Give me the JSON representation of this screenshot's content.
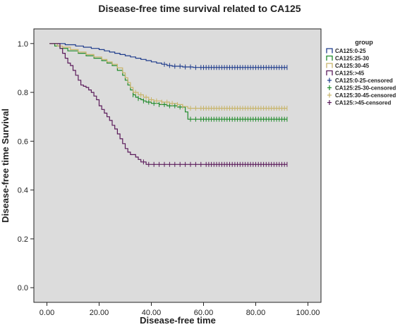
{
  "chart_data": {
    "type": "line",
    "title": "Disease-free time survival related to CA125",
    "xlabel": "Disease-free time",
    "ylabel": "Disease-free time Survival",
    "xlim": [
      -5,
      105
    ],
    "ylim": [
      -0.06,
      1.06
    ],
    "x_ticks": [
      "0.00",
      "20.00",
      "40.00",
      "60.00",
      "80.00",
      "100.00"
    ],
    "x_tick_values": [
      0,
      20,
      40,
      60,
      80,
      100
    ],
    "y_ticks": [
      "0.0",
      "0.2",
      "0.4",
      "0.6",
      "0.8",
      "1.0"
    ],
    "y_tick_values": [
      0,
      0.2,
      0.4,
      0.6,
      0.8,
      1.0
    ],
    "grid": false,
    "legend_position": "right",
    "legend_title": "group",
    "plot_background": "#dcdcdc",
    "series": [
      {
        "name": "CA125:0-25",
        "color": "#1f3c8c",
        "censored_label": "CA125:0-25-censored",
        "steps": [
          [
            1,
            1.0
          ],
          [
            7,
            0.995
          ],
          [
            11,
            0.99
          ],
          [
            14,
            0.985
          ],
          [
            17,
            0.98
          ],
          [
            20,
            0.975
          ],
          [
            22,
            0.97
          ],
          [
            24,
            0.965
          ],
          [
            26,
            0.96
          ],
          [
            28,
            0.955
          ],
          [
            30,
            0.95
          ],
          [
            32,
            0.945
          ],
          [
            34,
            0.94
          ],
          [
            36,
            0.935
          ],
          [
            38,
            0.93
          ],
          [
            40,
            0.925
          ],
          [
            42,
            0.92
          ],
          [
            44,
            0.915
          ],
          [
            46,
            0.91
          ],
          [
            48,
            0.907
          ],
          [
            52,
            0.904
          ],
          [
            56,
            0.902
          ],
          [
            92,
            0.902
          ]
        ],
        "censored": [
          45,
          47,
          49,
          51,
          53,
          55,
          57,
          59,
          60,
          61,
          62,
          63,
          64,
          65,
          66,
          67,
          68,
          69,
          70,
          71,
          72,
          73,
          74,
          75,
          76,
          77,
          78,
          79,
          80,
          81,
          82,
          83,
          84,
          85,
          86,
          87,
          88,
          89,
          90,
          91,
          92
        ]
      },
      {
        "name": "CA125:25-30",
        "color": "#1e8a2a",
        "censored_label": "CA125:25-30-censored",
        "steps": [
          [
            1,
            1.0
          ],
          [
            3,
            0.99
          ],
          [
            5,
            0.98
          ],
          [
            8,
            0.97
          ],
          [
            12,
            0.96
          ],
          [
            15,
            0.95
          ],
          [
            18,
            0.94
          ],
          [
            21,
            0.93
          ],
          [
            23,
            0.92
          ],
          [
            25,
            0.91
          ],
          [
            27,
            0.89
          ],
          [
            29,
            0.87
          ],
          [
            30,
            0.85
          ],
          [
            31,
            0.83
          ],
          [
            32,
            0.81
          ],
          [
            33,
            0.79
          ],
          [
            34,
            0.78
          ],
          [
            35,
            0.775
          ],
          [
            36,
            0.77
          ],
          [
            37,
            0.765
          ],
          [
            38,
            0.76
          ],
          [
            40,
            0.755
          ],
          [
            43,
            0.75
          ],
          [
            46,
            0.745
          ],
          [
            50,
            0.74
          ],
          [
            53,
            0.72
          ],
          [
            54,
            0.69
          ],
          [
            92,
            0.69
          ]
        ],
        "censored": [
          33,
          35,
          37,
          39,
          41,
          43,
          45,
          47,
          49,
          51,
          55,
          57,
          59,
          60,
          61,
          62,
          63,
          64,
          65,
          66,
          67,
          68,
          69,
          70,
          71,
          72,
          73,
          74,
          75,
          76,
          77,
          78,
          79,
          80,
          81,
          82,
          83,
          84,
          85,
          86,
          87,
          88,
          89,
          90,
          91,
          92
        ]
      },
      {
        "name": "CA125:30-45",
        "color": "#c8b46a",
        "censored_label": "CA125:30-45-censored",
        "steps": [
          [
            1,
            1.0
          ],
          [
            4,
            0.99
          ],
          [
            6,
            0.985
          ],
          [
            9,
            0.975
          ],
          [
            12,
            0.965
          ],
          [
            15,
            0.955
          ],
          [
            18,
            0.945
          ],
          [
            21,
            0.935
          ],
          [
            23,
            0.925
          ],
          [
            25,
            0.915
          ],
          [
            27,
            0.9
          ],
          [
            29,
            0.88
          ],
          [
            30,
            0.86
          ],
          [
            31,
            0.84
          ],
          [
            32,
            0.82
          ],
          [
            33,
            0.8
          ],
          [
            35,
            0.79
          ],
          [
            37,
            0.78
          ],
          [
            39,
            0.77
          ],
          [
            41,
            0.765
          ],
          [
            44,
            0.76
          ],
          [
            47,
            0.755
          ],
          [
            50,
            0.75
          ],
          [
            52,
            0.742
          ],
          [
            54,
            0.735
          ],
          [
            92,
            0.735
          ]
        ],
        "censored": [
          34,
          36,
          38,
          40,
          42,
          44,
          46,
          48,
          50,
          52,
          55,
          57,
          59,
          60,
          61,
          62,
          63,
          64,
          65,
          66,
          67,
          68,
          69,
          70,
          71,
          72,
          73,
          74,
          75,
          76,
          77,
          78,
          79,
          80,
          81,
          82,
          83,
          84,
          85,
          86,
          87,
          88,
          89,
          90,
          91,
          92
        ]
      },
      {
        "name": "CA125:>45",
        "color": "#5a1a5a",
        "censored_label": "CA125:>45-censored",
        "steps": [
          [
            1,
            1.0
          ],
          [
            5,
            0.98
          ],
          [
            6,
            0.96
          ],
          [
            7,
            0.94
          ],
          [
            8,
            0.92
          ],
          [
            9,
            0.91
          ],
          [
            10,
            0.89
          ],
          [
            11,
            0.87
          ],
          [
            12,
            0.85
          ],
          [
            13,
            0.83
          ],
          [
            14,
            0.825
          ],
          [
            15,
            0.82
          ],
          [
            16,
            0.81
          ],
          [
            17,
            0.8
          ],
          [
            18,
            0.785
          ],
          [
            19,
            0.77
          ],
          [
            20,
            0.745
          ],
          [
            21,
            0.73
          ],
          [
            22,
            0.715
          ],
          [
            23,
            0.7
          ],
          [
            24,
            0.685
          ],
          [
            25,
            0.665
          ],
          [
            26,
            0.65
          ],
          [
            27,
            0.63
          ],
          [
            28,
            0.61
          ],
          [
            29,
            0.59
          ],
          [
            30,
            0.57
          ],
          [
            31,
            0.555
          ],
          [
            32,
            0.545
          ],
          [
            34,
            0.535
          ],
          [
            35,
            0.525
          ],
          [
            36,
            0.515
          ],
          [
            38,
            0.505
          ],
          [
            92,
            0.505
          ]
        ],
        "censored": [
          37,
          39,
          41,
          43,
          45,
          47,
          49,
          51,
          53,
          55,
          57,
          59,
          61,
          62,
          63,
          64,
          65,
          66,
          67,
          68,
          69,
          70,
          71,
          72,
          73,
          74,
          75,
          76,
          77,
          78,
          79,
          80,
          81,
          82,
          83,
          84,
          85,
          86,
          87,
          88,
          89,
          90,
          91,
          92
        ]
      }
    ]
  }
}
